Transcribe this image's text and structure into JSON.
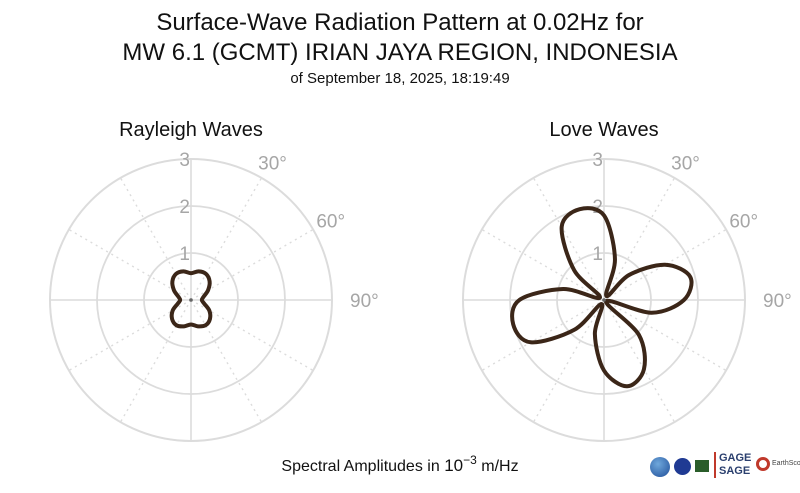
{
  "title": {
    "line1": "Surface-Wave Radiation Pattern at 0.02Hz for",
    "line2": "MW 6.1 (GCMT) IRIAN JAYA REGION, INDONESIA",
    "line3": "of September 18, 2025, 18:19:49"
  },
  "footer": {
    "label_prefix": "Spectral Amplitudes in",
    "label_base": "10",
    "label_exponent": "−3",
    "label_unit": "m/Hz"
  },
  "logos": {
    "gage": "GAGE",
    "sage": "SAGE",
    "earthscope": "EarthScope"
  },
  "colors": {
    "pattern": "#3b2618",
    "grid": "#dcdcdc",
    "tick_label": "#a6a6a6"
  },
  "chart_data": [
    {
      "type": "polar",
      "title": "Rayleigh Waves",
      "r_ticks": [
        1,
        2,
        3
      ],
      "rlim": [
        0,
        3
      ],
      "theta_tick_labels": [
        "30°",
        "60°",
        "90°"
      ],
      "theta_zero": "north",
      "theta_direction": "clockwise",
      "grid": true,
      "series": [
        {
          "theta_deg": [
            0,
            15,
            30,
            45,
            60,
            75,
            90,
            105,
            120,
            135,
            150,
            165,
            180,
            195,
            210,
            225,
            240,
            255,
            270,
            285,
            300,
            315,
            330,
            345
          ],
          "r": [
            0.57,
            0.63,
            0.64,
            0.56,
            0.42,
            0.28,
            0.23,
            0.29,
            0.45,
            0.57,
            0.62,
            0.58,
            0.52,
            0.58,
            0.62,
            0.57,
            0.45,
            0.29,
            0.23,
            0.28,
            0.42,
            0.56,
            0.64,
            0.63
          ]
        }
      ]
    },
    {
      "type": "polar",
      "title": "Love Waves",
      "r_ticks": [
        1,
        2,
        3
      ],
      "rlim": [
        0,
        3
      ],
      "theta_tick_labels": [
        "30°",
        "60°",
        "90°"
      ],
      "theta_zero": "north",
      "theta_direction": "clockwise",
      "grid": true,
      "series": [
        {
          "theta_deg": [
            0,
            15,
            30,
            45,
            60,
            75,
            90,
            105,
            120,
            135,
            150,
            165,
            180,
            195,
            210,
            225,
            240,
            255,
            270,
            285,
            300,
            315,
            330,
            345
          ],
          "r": [
            1.8,
            0.9,
            0.1,
            0.75,
            1.5,
            1.9,
            1.7,
            1.05,
            0.05,
            1.05,
            1.7,
            1.9,
            1.5,
            0.75,
            0.1,
            0.9,
            1.8,
            2.0,
            1.8,
            0.9,
            0.1,
            0.9,
            1.8,
            2.0
          ]
        }
      ]
    }
  ]
}
